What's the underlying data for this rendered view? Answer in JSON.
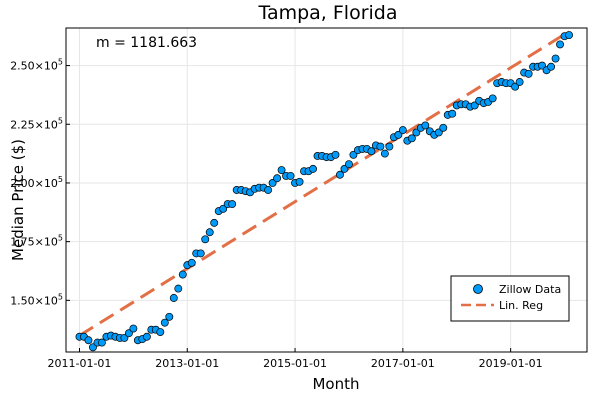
{
  "chart_data": {
    "type": "scatter",
    "title": "Tampa, Florida",
    "xlabel": "Month",
    "ylabel": "Median Price ($)",
    "annotation": "m = 1181.663",
    "x_ticks": [
      "2011-01-01",
      "2013-01-01",
      "2015-01-01",
      "2017-01-01",
      "2019-01-01"
    ],
    "y_ticks": [
      {
        "value": 150000,
        "mantissa": "1.50",
        "base": "×10",
        "exp": "5"
      },
      {
        "value": 175000,
        "mantissa": "1.75",
        "base": "×10",
        "exp": "5"
      },
      {
        "value": 200000,
        "mantissa": "2.00",
        "base": "×10",
        "exp": "5"
      },
      {
        "value": 225000,
        "mantissa": "2.25",
        "base": "×10",
        "exp": "5"
      },
      {
        "value": 250000,
        "mantissa": "2.50",
        "base": "×10",
        "exp": "5"
      }
    ],
    "xlim": [
      "2010-10-01",
      "2020-06-01"
    ],
    "ylim": [
      128000,
      266000
    ],
    "grid": true,
    "legend_position": "bottom-right",
    "series": [
      {
        "name": "Zillow Data",
        "kind": "scatter",
        "color": "#009AF9",
        "points": [
          [
            "2011-01",
            134500
          ],
          [
            "2011-02",
            134500
          ],
          [
            "2011-03",
            133000
          ],
          [
            "2011-04",
            130000
          ],
          [
            "2011-05",
            132000
          ],
          [
            "2011-06",
            132000
          ],
          [
            "2011-07",
            134500
          ],
          [
            "2011-08",
            135000
          ],
          [
            "2011-09",
            134500
          ],
          [
            "2011-10",
            134000
          ],
          [
            "2011-11",
            134000
          ],
          [
            "2011-12",
            136000
          ],
          [
            "2012-01",
            138000
          ],
          [
            "2012-02",
            133000
          ],
          [
            "2012-03",
            133500
          ],
          [
            "2012-04",
            134500
          ],
          [
            "2012-05",
            137500
          ],
          [
            "2012-06",
            137500
          ],
          [
            "2012-07",
            136500
          ],
          [
            "2012-08",
            140500
          ],
          [
            "2012-09",
            143000
          ],
          [
            "2012-10",
            151000
          ],
          [
            "2012-11",
            155000
          ],
          [
            "2012-12",
            161000
          ],
          [
            "2013-01",
            165000
          ],
          [
            "2013-02",
            166000
          ],
          [
            "2013-03",
            170000
          ],
          [
            "2013-04",
            170000
          ],
          [
            "2013-05",
            176000
          ],
          [
            "2013-06",
            179000
          ],
          [
            "2013-07",
            183000
          ],
          [
            "2013-08",
            188000
          ],
          [
            "2013-09",
            189000
          ],
          [
            "2013-10",
            191000
          ],
          [
            "2013-11",
            191000
          ],
          [
            "2013-12",
            197000
          ],
          [
            "2014-01",
            197000
          ],
          [
            "2014-02",
            196500
          ],
          [
            "2014-03",
            196000
          ],
          [
            "2014-04",
            197500
          ],
          [
            "2014-05",
            198000
          ],
          [
            "2014-06",
            198000
          ],
          [
            "2014-07",
            197000
          ],
          [
            "2014-08",
            200000
          ],
          [
            "2014-09",
            202000
          ],
          [
            "2014-10",
            205500
          ],
          [
            "2014-11",
            203000
          ],
          [
            "2014-12",
            203000
          ],
          [
            "2015-01",
            200000
          ],
          [
            "2015-02",
            200500
          ],
          [
            "2015-03",
            205000
          ],
          [
            "2015-04",
            205000
          ],
          [
            "2015-05",
            206000
          ],
          [
            "2015-06",
            211500
          ],
          [
            "2015-07",
            211500
          ],
          [
            "2015-08",
            211000
          ],
          [
            "2015-09",
            211000
          ],
          [
            "2015-10",
            212000
          ],
          [
            "2015-11",
            203500
          ],
          [
            "2015-12",
            206000
          ],
          [
            "2016-01",
            208000
          ],
          [
            "2016-02",
            212000
          ],
          [
            "2016-03",
            214000
          ],
          [
            "2016-04",
            214500
          ],
          [
            "2016-05",
            214500
          ],
          [
            "2016-06",
            213500
          ],
          [
            "2016-07",
            216000
          ],
          [
            "2016-08",
            215500
          ],
          [
            "2016-09",
            212500
          ],
          [
            "2016-10",
            215500
          ],
          [
            "2016-11",
            219500
          ],
          [
            "2016-12",
            220500
          ],
          [
            "2017-01",
            222500
          ],
          [
            "2017-02",
            218000
          ],
          [
            "2017-03",
            219000
          ],
          [
            "2017-04",
            221500
          ],
          [
            "2017-05",
            223500
          ],
          [
            "2017-06",
            224500
          ],
          [
            "2017-07",
            222000
          ],
          [
            "2017-08",
            220500
          ],
          [
            "2017-09",
            221500
          ],
          [
            "2017-10",
            223500
          ],
          [
            "2017-11",
            229000
          ],
          [
            "2017-12",
            229500
          ],
          [
            "2018-01",
            233000
          ],
          [
            "2018-02",
            233500
          ],
          [
            "2018-03",
            233500
          ],
          [
            "2018-04",
            232500
          ],
          [
            "2018-05",
            233000
          ],
          [
            "2018-06",
            235000
          ],
          [
            "2018-07",
            234000
          ],
          [
            "2018-08",
            234500
          ],
          [
            "2018-09",
            236000
          ],
          [
            "2018-10",
            242500
          ],
          [
            "2018-11",
            243000
          ],
          [
            "2018-12",
            242500
          ],
          [
            "2019-01",
            242500
          ],
          [
            "2019-02",
            241000
          ],
          [
            "2019-03",
            243000
          ],
          [
            "2019-04",
            247000
          ],
          [
            "2019-05",
            246500
          ],
          [
            "2019-06",
            249500
          ],
          [
            "2019-07",
            249500
          ],
          [
            "2019-08",
            250000
          ],
          [
            "2019-09",
            248000
          ],
          [
            "2019-10",
            249500
          ],
          [
            "2019-11",
            253000
          ],
          [
            "2019-12",
            259000
          ],
          [
            "2020-01",
            262500
          ],
          [
            "2020-02",
            263000
          ]
        ]
      },
      {
        "name": "Lin. Reg",
        "kind": "dashed-line",
        "color": "#E26F46",
        "points": [
          [
            "2011-01",
            135000
          ],
          [
            "2020-02",
            264500
          ]
        ]
      }
    ]
  }
}
